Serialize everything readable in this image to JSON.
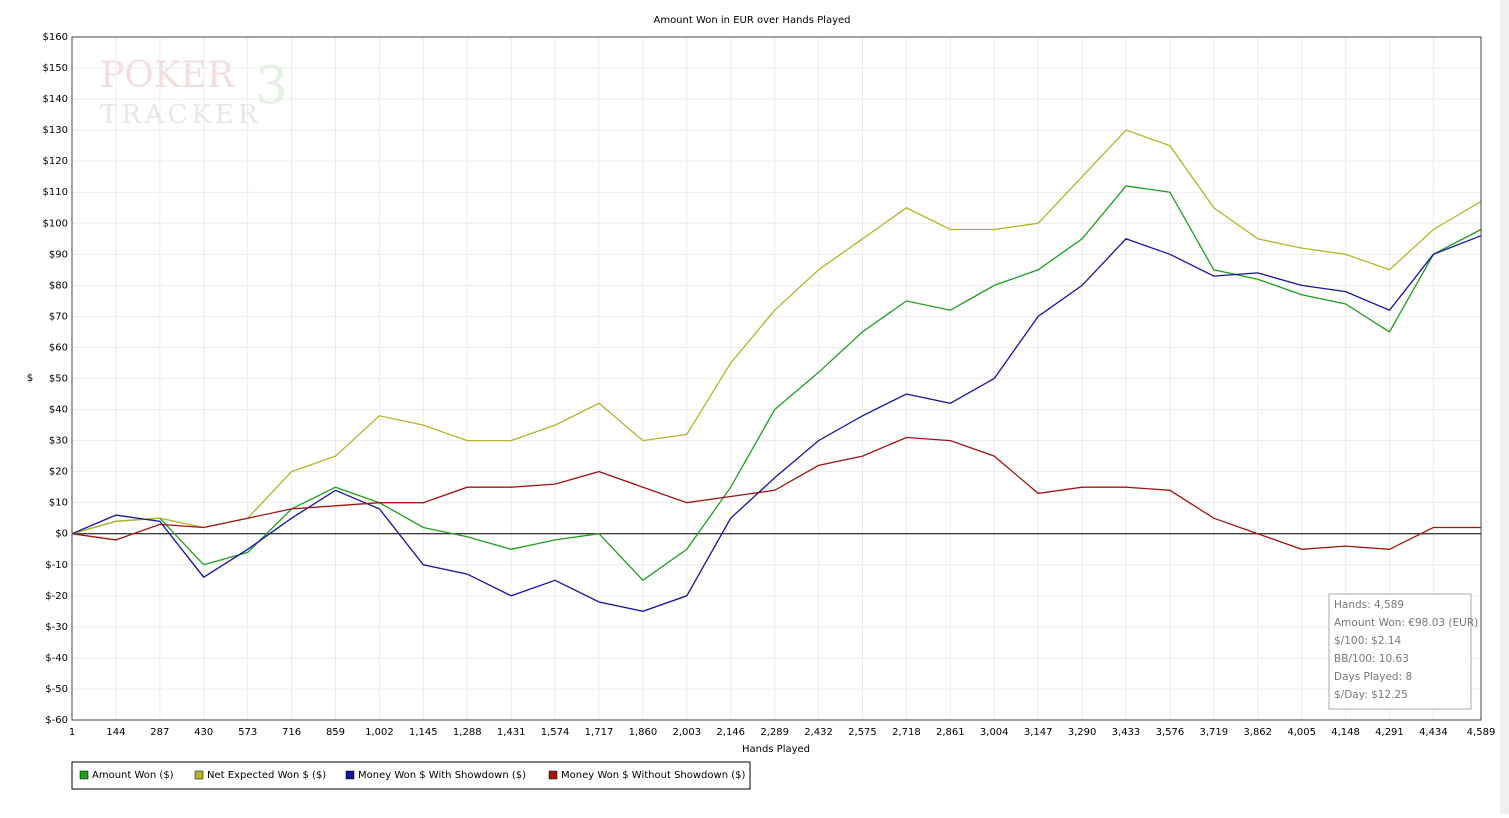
{
  "chart_data": {
    "type": "line",
    "title": "Amount Won in EUR over Hands Played",
    "x_label": "Hands Played",
    "y_label": "$",
    "x": [
      1,
      144,
      287,
      430,
      573,
      716,
      859,
      1002,
      1145,
      1288,
      1431,
      1574,
      1717,
      1860,
      2003,
      2146,
      2289,
      2432,
      2575,
      2718,
      2861,
      3004,
      3147,
      3290,
      3433,
      3576,
      3719,
      3862,
      4005,
      4148,
      4291,
      4434,
      4589
    ],
    "series": [
      {
        "name": "Amount Won ($)",
        "color": "#1e9e1e",
        "values": [
          0,
          4,
          5,
          -10,
          -6,
          8,
          15,
          10,
          2,
          -1,
          -5,
          -2,
          0,
          -15,
          -5,
          15,
          40,
          52,
          65,
          75,
          72,
          80,
          85,
          95,
          112,
          110,
          85,
          82,
          77,
          74,
          65,
          90,
          98
        ]
      },
      {
        "name": "Net Expected Won $ ($)",
        "color": "#b4b428",
        "values": [
          0,
          4,
          5,
          2,
          5,
          20,
          25,
          38,
          35,
          30,
          30,
          35,
          42,
          30,
          32,
          55,
          72,
          85,
          95,
          105,
          98,
          98,
          100,
          115,
          130,
          125,
          105,
          95,
          92,
          90,
          85,
          98,
          107
        ]
      },
      {
        "name": "Money Won $ With Showdown ($)",
        "color": "#1414a0",
        "values": [
          0,
          6,
          4,
          -14,
          -5,
          5,
          14,
          8,
          -10,
          -13,
          -20,
          -15,
          -22,
          -25,
          -20,
          5,
          18,
          30,
          38,
          45,
          42,
          50,
          70,
          80,
          95,
          90,
          83,
          84,
          80,
          78,
          72,
          90,
          96
        ]
      },
      {
        "name": "Money Won $ Without Showdown ($)",
        "color": "#a01414",
        "values": [
          0,
          -2,
          3,
          2,
          5,
          8,
          9,
          10,
          10,
          15,
          15,
          16,
          20,
          15,
          10,
          12,
          14,
          22,
          25,
          31,
          30,
          25,
          13,
          15,
          15,
          14,
          5,
          0,
          -5,
          -4,
          -5,
          2,
          2
        ]
      }
    ],
    "xlim": [
      1,
      4589
    ],
    "xticks": [
      1,
      144,
      287,
      430,
      573,
      716,
      859,
      {
        "value": 1002,
        "label": "1,002"
      },
      {
        "value": 1145,
        "label": "1,145"
      },
      {
        "value": 1288,
        "label": "1,288"
      },
      {
        "value": 1431,
        "label": "1,431"
      },
      {
        "value": 1574,
        "label": "1,574"
      },
      {
        "value": 1717,
        "label": "1,717"
      },
      {
        "value": 1860,
        "label": "1,860"
      },
      {
        "value": 2003,
        "label": "2,003"
      },
      {
        "value": 2146,
        "label": "2,146"
      },
      {
        "value": 2289,
        "label": "2,289"
      },
      {
        "value": 2432,
        "label": "2,432"
      },
      {
        "value": 2575,
        "label": "2,575"
      },
      {
        "value": 2718,
        "label": "2,718"
      },
      {
        "value": 2861,
        "label": "2,861"
      },
      {
        "value": 3004,
        "label": "3,004"
      },
      {
        "value": 3147,
        "label": "3,147"
      },
      {
        "value": 3290,
        "label": "3,290"
      },
      {
        "value": 3433,
        "label": "3,433"
      },
      {
        "value": 3576,
        "label": "3,576"
      },
      {
        "value": 3719,
        "label": "3,719"
      },
      {
        "value": 3862,
        "label": "3,862"
      },
      {
        "value": 4005,
        "label": "4,005"
      },
      {
        "value": 4148,
        "label": "4,148"
      },
      {
        "value": 4291,
        "label": "4,291"
      },
      {
        "value": 4434,
        "label": "4,434"
      },
      {
        "value": 4589,
        "label": "4,589"
      }
    ],
    "ylim": [
      -60,
      160
    ],
    "yticks": [
      {
        "value": -60,
        "label": "$-60"
      },
      {
        "value": -50,
        "label": "$-50"
      },
      {
        "value": -40,
        "label": "$-40"
      },
      {
        "value": -30,
        "label": "$-30"
      },
      {
        "value": -20,
        "label": "$-20"
      },
      {
        "value": -10,
        "label": "$-10"
      },
      {
        "value": 0,
        "label": "$0"
      },
      {
        "value": 10,
        "label": "$10"
      },
      {
        "value": 20,
        "label": "$20"
      },
      {
        "value": 30,
        "label": "$30"
      },
      {
        "value": 40,
        "label": "$40"
      },
      {
        "value": 50,
        "label": "$50"
      },
      {
        "value": 60,
        "label": "$60"
      },
      {
        "value": 70,
        "label": "$70"
      },
      {
        "value": 80,
        "label": "$80"
      },
      {
        "value": 90,
        "label": "$90"
      },
      {
        "value": 100,
        "label": "$100"
      },
      {
        "value": 110,
        "label": "$110"
      },
      {
        "value": 120,
        "label": "$120"
      },
      {
        "value": 130,
        "label": "$130"
      },
      {
        "value": 140,
        "label": "$140"
      },
      {
        "value": 150,
        "label": "$150"
      },
      {
        "value": 160,
        "label": "$160"
      }
    ],
    "grid": true,
    "legend": "bottom-left",
    "watermark": [
      "POKER",
      "3",
      "TRACKER"
    ],
    "info_lines": [
      "Hands: 4,589",
      "Amount Won: €98.03 (EUR)",
      "$/100: $2.14",
      "BB/100: 10.63",
      "Days Played: 8",
      "$/Day: $12.25"
    ]
  }
}
